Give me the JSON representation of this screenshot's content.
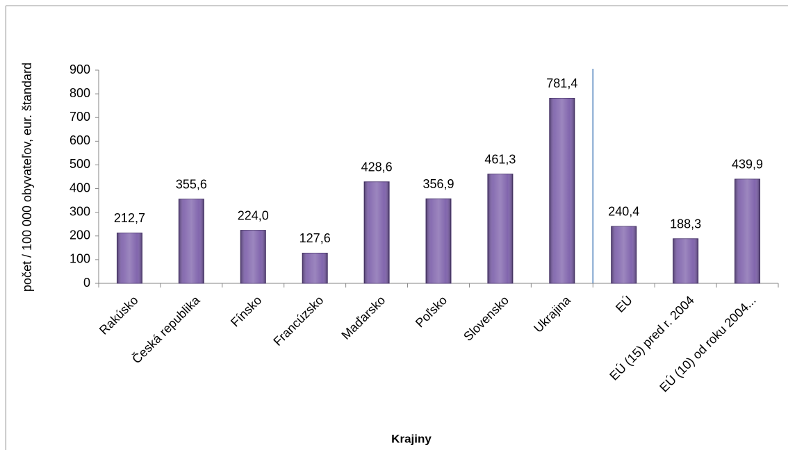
{
  "chart_data": {
    "type": "bar",
    "x_label": "Krajiny",
    "y_label": "počet / 100 000 obyvateľov, eur. štandard",
    "categories": [
      "Rakúsko",
      "Česká republika",
      "Fínsko",
      "Francúzsko",
      "Maďarsko",
      "Poľsko",
      "Slovensko",
      "Ukrajina",
      "EÚ",
      "EÚ (15) pred r. 2004",
      "EÚ (10)  od roku 2004..."
    ],
    "values": [
      212.7,
      355.6,
      224.0,
      127.6,
      428.6,
      356.9,
      461.3,
      781.4,
      240.4,
      188.3,
      439.9
    ],
    "value_labels": [
      "212,7",
      "355,6",
      "224,0",
      "127,6",
      "428,6",
      "356,9",
      "461,3",
      "781,4",
      "240,4",
      "188,3",
      "439,9"
    ],
    "color": "#7b5ea9",
    "ylim": [
      0,
      900
    ],
    "yticks": [
      0,
      100,
      200,
      300,
      400,
      500,
      600,
      700,
      800,
      900
    ],
    "grid": false
  }
}
